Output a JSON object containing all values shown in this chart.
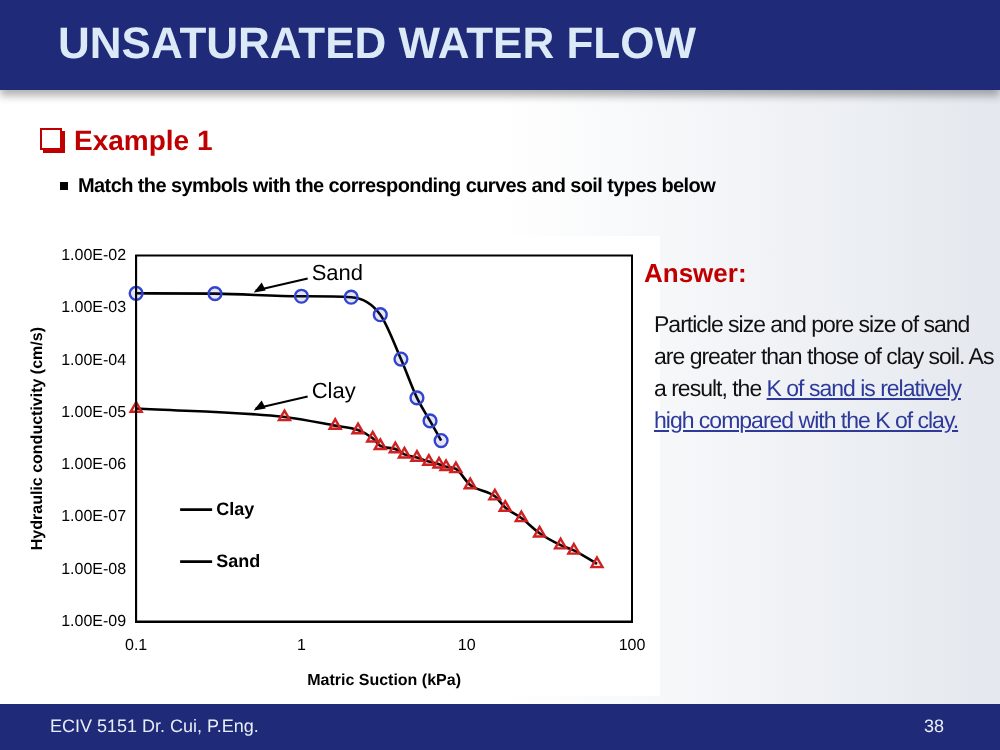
{
  "chart_data": {
    "type": "line",
    "title": "UNSATURATED WATER FLOW",
    "subtitle": "Example 1",
    "xlabel": "Matric Suction (kPa)",
    "ylabel": "Hydraulic conductivity (cm/s)",
    "log": "xy",
    "xlim": [
      0.1,
      100
    ],
    "xticks": [
      0.1,
      1,
      10,
      100
    ],
    "ylim": [
      1e-09,
      0.01
    ],
    "yticks": [
      {
        "value": 1e-09,
        "label": "1.00E-09"
      },
      {
        "value": 1e-08,
        "label": "1.00E-08"
      },
      {
        "value": 1e-07,
        "label": "1.00E-07"
      },
      {
        "value": 1e-06,
        "label": "1.00E-06"
      },
      {
        "value": 1e-05,
        "label": "1.00E-05"
      },
      {
        "value": 0.0001,
        "label": "1.00E-04"
      },
      {
        "value": 0.001,
        "label": "1.00E-03"
      },
      {
        "value": 0.01,
        "label": "1.00E-02"
      }
    ],
    "grid": false,
    "legend": "bottom left",
    "series": [
      {
        "name": "Clay",
        "type": "line",
        "color": "#000000",
        "marker": "none",
        "x": [
          0.1,
          0.79,
          1.6,
          2.2,
          2.7,
          3.0,
          3.7,
          4.2,
          5.0,
          5.9,
          6.8,
          7.5,
          8.6,
          10.5,
          14.8,
          17.1,
          21.4,
          27.6,
          37,
          44.5,
          61.4
        ],
        "values": [
          1.19e-05,
          8.2e-06,
          5.6e-06,
          4.6e-06,
          3.2e-06,
          2.3e-06,
          2e-06,
          1.58e-06,
          1.37e-06,
          1.15e-06,
          1.02e-06,
          9.1e-07,
          8.3e-07,
          4.1e-07,
          2.5e-07,
          1.52e-07,
          9.6e-08,
          4.9e-08,
          2.9e-08,
          2.3e-08,
          1.27e-08
        ]
      },
      {
        "name": "Sand",
        "type": "line",
        "color": "#000000",
        "marker": "none",
        "x": [
          0.1,
          0.3,
          1,
          2,
          3,
          4,
          5,
          6,
          7
        ],
        "values": [
          0.0019,
          0.00187,
          0.00167,
          0.0016,
          0.00074,
          0.000105,
          1.9e-05,
          6.9e-06,
          2.9e-06
        ]
      },
      {
        "type": "scatter",
        "color": "#3344cc",
        "marker": "circle",
        "x": [
          0.1,
          0.3,
          1,
          2,
          3,
          4,
          5,
          6,
          7
        ],
        "values": [
          0.0019,
          0.00187,
          0.00167,
          0.0016,
          0.00074,
          0.000105,
          1.9e-05,
          6.9e-06,
          2.9e-06
        ]
      },
      {
        "type": "scatter",
        "color": "#cc2222",
        "marker": "triangle",
        "x": [
          0.1,
          0.79,
          1.6,
          2.2,
          2.7,
          3.0,
          3.7,
          4.2,
          5.0,
          5.9,
          6.8,
          7.5,
          8.6,
          10.5,
          14.8,
          17.1,
          21.4,
          27.6,
          37,
          44.5,
          61.4
        ],
        "values": [
          1.19e-05,
          8.2e-06,
          5.6e-06,
          4.6e-06,
          3.2e-06,
          2.3e-06,
          2e-06,
          1.58e-06,
          1.37e-06,
          1.15e-06,
          1.02e-06,
          9.1e-07,
          8.3e-07,
          4.1e-07,
          2.5e-07,
          1.52e-07,
          9.6e-08,
          4.9e-08,
          2.9e-08,
          2.3e-08,
          1.27e-08
        ]
      }
    ],
    "annotations": [
      {
        "text": "Sand",
        "x": 0.5,
        "y": 0.0018
      },
      {
        "text": "Clay",
        "x": 0.5,
        "y": 1e-05
      },
      "Match the symbols with the corresponding curves and soil types below",
      "Answer:",
      "Particle size and pore size of sand are greater than those of clay soil. As a result, the",
      "K of sand is relatively high compared with the K of clay.",
      "ECIV 5151 Dr. Cui, P.Eng.",
      "38"
    ]
  }
}
